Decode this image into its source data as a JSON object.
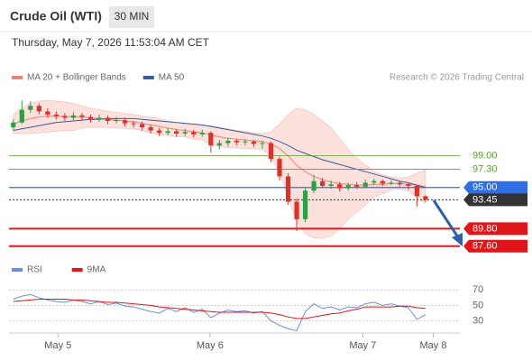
{
  "header": {
    "title": "Crude Oil (WTI)",
    "timeframe": "30 MIN",
    "datetime": "Thursday, May 7, 2026 11:53:04 AM CET"
  },
  "chart_data": [
    {
      "type": "candlestick",
      "legend": [
        {
          "name": "MA 20 + Bollinger Bands",
          "color": "#f0827a"
        },
        {
          "name": "MA 50",
          "color": "#3a5a9c"
        }
      ],
      "credit": "Research © 2026 Trading Central",
      "up_color": "#2f9e44",
      "down_color": "#d9342b",
      "x": [
        0,
        1,
        2,
        3,
        4,
        5,
        6,
        7,
        8,
        9,
        10,
        11,
        12,
        13,
        14,
        15,
        16,
        17,
        18,
        19,
        20,
        21,
        22,
        23,
        24,
        25,
        26,
        27,
        28,
        29,
        30,
        31,
        32,
        33,
        34,
        35,
        36,
        37,
        38,
        39,
        40,
        41,
        42,
        43,
        44,
        45,
        46,
        47,
        48
      ],
      "xlim": [
        -0.5,
        52
      ],
      "xticks": [
        {
          "value": 5.2,
          "label": "May 5"
        },
        {
          "value": 22.9,
          "label": "May 6"
        },
        {
          "value": 40.7,
          "label": "May 7"
        },
        {
          "value": 48.9,
          "label": "May 8"
        }
      ],
      "ylim": [
        86.2,
        107.5
      ],
      "open": [
        102.6,
        103.2,
        104.8,
        105.3,
        104.6,
        104.2,
        104.0,
        103.8,
        104.1,
        103.9,
        103.6,
        103.8,
        103.4,
        103.5,
        103.1,
        103.0,
        102.6,
        102.2,
        101.9,
        102.1,
        101.8,
        102.0,
        101.7,
        101.9,
        100.3,
        100.6,
        100.9,
        100.7,
        100.8,
        100.5,
        100.6,
        98.6,
        96.4,
        93.2,
        91.0,
        94.6,
        95.8,
        95.2,
        95.4,
        94.9,
        95.3,
        95.1,
        95.6,
        95.8,
        95.5,
        95.6,
        95.4,
        95.2,
        93.9
      ],
      "high": [
        103.6,
        106.0,
        105.9,
        105.6,
        105.0,
        104.6,
        104.4,
        104.5,
        104.4,
        104.2,
        104.2,
        104.1,
        103.9,
        103.8,
        103.4,
        103.3,
        102.9,
        102.5,
        102.5,
        102.4,
        102.4,
        102.3,
        102.3,
        102.1,
        101.0,
        101.3,
        101.1,
        101.1,
        101.0,
        100.9,
        100.8,
        98.9,
        96.8,
        93.6,
        95.0,
        96.6,
        96.2,
        95.9,
        95.7,
        95.6,
        95.7,
        96.0,
        96.1,
        96.0,
        95.9,
        95.8,
        95.6,
        95.3,
        94.0
      ],
      "low": [
        102.2,
        103.0,
        104.4,
        104.2,
        103.8,
        103.6,
        103.4,
        103.5,
        103.5,
        103.2,
        103.3,
        103.0,
        103.1,
        102.7,
        102.6,
        102.2,
        101.8,
        101.5,
        101.6,
        101.4,
        101.5,
        101.3,
        101.4,
        99.4,
        99.8,
        100.2,
        100.3,
        100.3,
        100.1,
        99.9,
        98.2,
        95.9,
        92.8,
        89.5,
        90.6,
        94.3,
        94.9,
        94.8,
        94.5,
        94.6,
        94.8,
        94.9,
        95.3,
        95.2,
        95.3,
        95.1,
        94.7,
        92.6,
        93.2
      ],
      "close": [
        103.2,
        104.8,
        105.3,
        104.6,
        104.2,
        104.0,
        103.8,
        104.1,
        103.9,
        103.6,
        103.8,
        103.4,
        103.5,
        103.1,
        103.0,
        102.6,
        102.2,
        101.9,
        102.1,
        101.8,
        102.0,
        101.7,
        101.9,
        100.3,
        100.6,
        100.9,
        100.7,
        100.8,
        100.5,
        100.6,
        98.6,
        96.4,
        93.2,
        91.0,
        94.6,
        95.8,
        95.2,
        95.4,
        94.9,
        95.3,
        95.1,
        95.6,
        95.8,
        95.5,
        95.6,
        95.4,
        95.2,
        93.9,
        93.45
      ],
      "bollinger_upper": [
        104.2,
        105.0,
        105.6,
        105.9,
        106.0,
        105.9,
        105.8,
        105.6,
        105.3,
        105.0,
        104.8,
        104.6,
        104.5,
        104.3,
        104.2,
        104.0,
        103.9,
        103.7,
        103.4,
        103.2,
        103.0,
        102.9,
        102.8,
        102.8,
        102.6,
        102.4,
        102.2,
        102.1,
        101.9,
        101.8,
        102.0,
        103.0,
        104.2,
        105.0,
        104.8,
        104.2,
        103.4,
        102.5,
        101.2,
        99.8,
        98.7,
        97.8,
        97.0,
        96.6,
        96.3,
        96.2,
        96.3,
        96.8,
        97.2
      ],
      "bollinger_lower": [
        101.8,
        101.8,
        101.8,
        101.9,
        102.0,
        102.1,
        102.2,
        102.2,
        102.5,
        102.6,
        102.6,
        102.6,
        102.5,
        102.5,
        102.4,
        102.2,
        101.9,
        101.7,
        101.6,
        101.4,
        101.4,
        101.1,
        101.0,
        100.4,
        100.2,
        100.0,
        100.0,
        99.9,
        99.9,
        99.8,
        99.0,
        96.8,
        93.8,
        90.6,
        89.2,
        88.6,
        88.6,
        88.9,
        89.8,
        91.0,
        91.9,
        92.8,
        93.8,
        94.2,
        94.7,
        94.8,
        94.5,
        93.8,
        93.0
      ],
      "ma20": [
        103.0,
        103.4,
        103.7,
        103.9,
        104.0,
        104.0,
        104.0,
        103.9,
        103.9,
        103.8,
        103.7,
        103.6,
        103.5,
        103.4,
        103.3,
        103.1,
        102.9,
        102.7,
        102.5,
        102.3,
        102.2,
        102.0,
        101.9,
        101.6,
        101.4,
        101.2,
        101.1,
        101.0,
        100.9,
        100.8,
        100.5,
        99.9,
        99.0,
        97.8,
        97.0,
        96.4,
        96.0,
        95.7,
        95.5,
        95.4,
        95.3,
        95.3,
        95.4,
        95.4,
        95.5,
        95.5,
        95.4,
        95.3,
        95.1
      ],
      "ma50": [
        102.2,
        102.4,
        102.6,
        102.8,
        103.0,
        103.2,
        103.3,
        103.4,
        103.5,
        103.6,
        103.6,
        103.7,
        103.7,
        103.7,
        103.7,
        103.6,
        103.5,
        103.4,
        103.3,
        103.2,
        103.1,
        103.0,
        102.9,
        102.7,
        102.5,
        102.3,
        102.1,
        101.9,
        101.7,
        101.5,
        101.2,
        100.8,
        100.3,
        99.7,
        99.3,
        98.9,
        98.5,
        98.2,
        97.9,
        97.6,
        97.3,
        97.0,
        96.7,
        96.4,
        96.1,
        95.8,
        95.6,
        95.3,
        95.0
      ],
      "levels": [
        {
          "value": 99.0,
          "label": "99.00",
          "color": "#5aa02c",
          "boxed": false,
          "width": 0.8,
          "dashed": false
        },
        {
          "value": 97.3,
          "label": "97.30",
          "color": "#5aa02c",
          "boxed": false,
          "width": 0.8,
          "dashed": false
        },
        {
          "value": 95.0,
          "label": "95.00",
          "color": "#2f6fe6",
          "boxed": true,
          "width": 1.2,
          "dashed": false
        },
        {
          "value": 93.45,
          "label": "93.45",
          "color": "#333333",
          "boxed": true,
          "width": 1,
          "dashed": true
        },
        {
          "value": 89.8,
          "label": "89.80",
          "color": "#e0161b",
          "boxed": true,
          "width": 2,
          "dashed": false
        },
        {
          "value": 87.6,
          "label": "87.60",
          "color": "#e0161b",
          "boxed": true,
          "width": 2,
          "dashed": false
        }
      ]
    },
    {
      "type": "line",
      "x": [
        0,
        1,
        2,
        3,
        4,
        5,
        6,
        7,
        8,
        9,
        10,
        11,
        12,
        13,
        14,
        15,
        16,
        17,
        18,
        19,
        20,
        21,
        22,
        23,
        24,
        25,
        26,
        27,
        28,
        29,
        30,
        31,
        32,
        33,
        34,
        35,
        36,
        37,
        38,
        39,
        40,
        41,
        42,
        43,
        44,
        45,
        46,
        47,
        48
      ],
      "xlim": [
        -0.5,
        52
      ],
      "ylim": [
        13,
        82
      ],
      "yticks": [
        70,
        50,
        30
      ],
      "series": [
        {
          "name": "RSI",
          "color": "#6a8ee0",
          "values": [
            58,
            62,
            64,
            60,
            57,
            55,
            54,
            57,
            55,
            52,
            55,
            51,
            53,
            49,
            48,
            45,
            42,
            40,
            46,
            42,
            47,
            41,
            45,
            34,
            40,
            44,
            42,
            43,
            40,
            42,
            30,
            24,
            20,
            17,
            42,
            52,
            46,
            48,
            44,
            48,
            47,
            52,
            54,
            50,
            52,
            49,
            47,
            32,
            38
          ]
        },
        {
          "name": "9MA",
          "color": "#e0161b",
          "values": [
            55,
            56,
            57,
            58,
            58,
            58,
            58,
            57,
            57,
            56,
            55,
            54,
            54,
            53,
            52,
            51,
            50,
            48,
            47,
            46,
            45,
            44,
            43,
            42,
            41,
            41,
            41,
            41,
            41,
            41,
            40,
            38,
            35,
            33,
            33,
            35,
            37,
            39,
            40,
            43,
            45,
            48,
            48,
            48,
            48,
            49,
            49,
            47,
            46
          ]
        }
      ]
    }
  ]
}
